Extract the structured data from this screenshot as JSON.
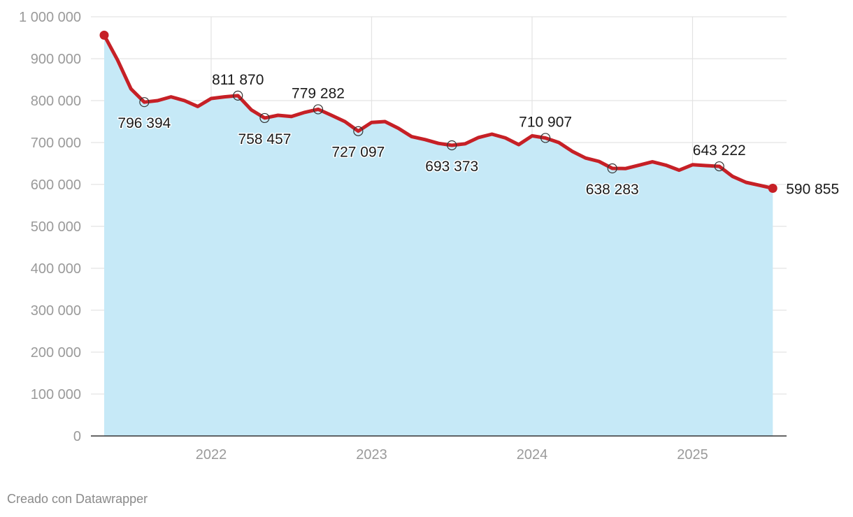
{
  "chart_data": {
    "type": "area",
    "xlabel": "",
    "ylabel": "",
    "ylim": [
      0,
      1000000
    ],
    "y_ticks": [
      0,
      100000,
      200000,
      300000,
      400000,
      500000,
      600000,
      700000,
      800000,
      900000,
      1000000
    ],
    "y_tick_labels": [
      "0",
      "100 000",
      "200 000",
      "300 000",
      "400 000",
      "500 000",
      "600 000",
      "700 000",
      "800 000",
      "900 000",
      "1 000 000"
    ],
    "x_ticks": [
      "2022",
      "2023",
      "2024",
      "2025"
    ],
    "grid": true,
    "colors": {
      "line": "#c62026",
      "area": "#c6e9f7",
      "grid": "#e3e3e3",
      "marker_fill": "#ffffff",
      "marker_stroke": "#333333"
    },
    "series": [
      {
        "points": [
          [
            "2021-05",
            956000
          ],
          [
            "2021-06",
            897000
          ],
          [
            "2021-07",
            828000
          ],
          [
            "2021-08",
            796394
          ],
          [
            "2021-09",
            800000
          ],
          [
            "2021-10",
            809000
          ],
          [
            "2021-11",
            800000
          ],
          [
            "2021-12",
            786000
          ],
          [
            "2022-01",
            805000
          ],
          [
            "2022-02",
            809000
          ],
          [
            "2022-03",
            811870
          ],
          [
            "2022-04",
            778000
          ],
          [
            "2022-05",
            758457
          ],
          [
            "2022-06",
            765000
          ],
          [
            "2022-07",
            762000
          ],
          [
            "2022-08",
            772000
          ],
          [
            "2022-09",
            779282
          ],
          [
            "2022-10",
            765000
          ],
          [
            "2022-11",
            750000
          ],
          [
            "2022-12",
            727097
          ],
          [
            "2023-01",
            748000
          ],
          [
            "2023-02",
            750000
          ],
          [
            "2023-03",
            734000
          ],
          [
            "2023-04",
            714000
          ],
          [
            "2023-05",
            707000
          ],
          [
            "2023-06",
            698000
          ],
          [
            "2023-07",
            693373
          ],
          [
            "2023-08",
            697000
          ],
          [
            "2023-09",
            712000
          ],
          [
            "2023-10",
            720000
          ],
          [
            "2023-11",
            711000
          ],
          [
            "2023-12",
            695000
          ],
          [
            "2024-01",
            716000
          ],
          [
            "2024-02",
            710907
          ],
          [
            "2024-03",
            700000
          ],
          [
            "2024-04",
            679000
          ],
          [
            "2024-05",
            663000
          ],
          [
            "2024-06",
            655000
          ],
          [
            "2024-07",
            638283
          ],
          [
            "2024-08",
            638000
          ],
          [
            "2024-09",
            646000
          ],
          [
            "2024-10",
            654000
          ],
          [
            "2024-11",
            646000
          ],
          [
            "2024-12",
            634000
          ],
          [
            "2025-01",
            647000
          ],
          [
            "2025-02",
            645000
          ],
          [
            "2025-03",
            643222
          ],
          [
            "2025-04",
            619000
          ],
          [
            "2025-05",
            605000
          ],
          [
            "2025-06",
            598000
          ],
          [
            "2025-07",
            590855
          ]
        ]
      }
    ],
    "annotations": [
      {
        "x": "2021-08",
        "value": 796394,
        "label": "796 394",
        "position": "below",
        "marker": "circle"
      },
      {
        "x": "2022-03",
        "value": 811870,
        "label": "811 870",
        "position": "above",
        "marker": "circle"
      },
      {
        "x": "2022-05",
        "value": 758457,
        "label": "758 457",
        "position": "below",
        "marker": "circle"
      },
      {
        "x": "2022-09",
        "value": 779282,
        "label": "779 282",
        "position": "above",
        "marker": "circle"
      },
      {
        "x": "2022-12",
        "value": 727097,
        "label": "727 097",
        "position": "below",
        "marker": "circle"
      },
      {
        "x": "2023-07",
        "value": 693373,
        "label": "693 373",
        "position": "below",
        "marker": "circle"
      },
      {
        "x": "2024-02",
        "value": 710907,
        "label": "710 907",
        "position": "above",
        "marker": "circle"
      },
      {
        "x": "2024-07",
        "value": 638283,
        "label": "638 283",
        "position": "below",
        "marker": "circle"
      },
      {
        "x": "2025-03",
        "value": 643222,
        "label": "643 222",
        "position": "above",
        "marker": "circle"
      },
      {
        "x": "2025-07",
        "value": 590855,
        "label": "590 855",
        "position": "right",
        "marker": "dot"
      }
    ],
    "start_marker": {
      "x": "2021-05",
      "marker": "dot"
    }
  },
  "footer": {
    "credit": "Creado con Datawrapper"
  }
}
